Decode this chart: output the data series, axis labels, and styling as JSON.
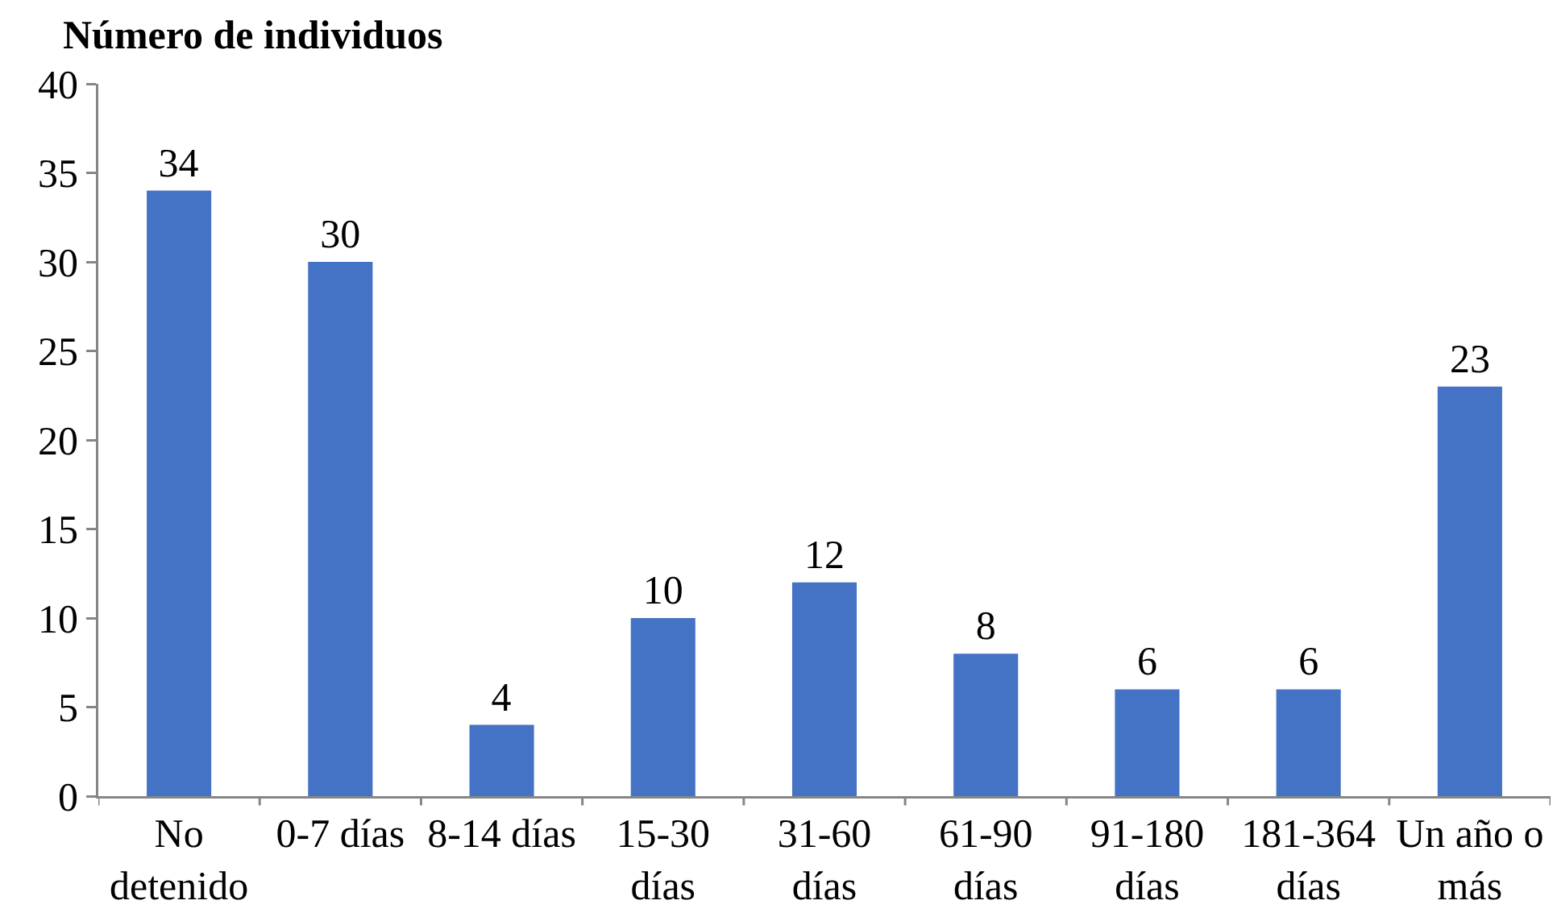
{
  "chart_data": {
    "type": "bar",
    "ylabel": "Número de individuos",
    "categories": [
      "No detenido",
      "0-7 días",
      "8-14 días",
      "15-30 días",
      "31-60 días",
      "61-90 días",
      "91-180 días",
      "181-364 días",
      "Un año o más"
    ],
    "values": [
      34,
      30,
      4,
      10,
      12,
      8,
      6,
      6,
      23
    ],
    "color": "#4472c4",
    "ylim": [
      0,
      40
    ],
    "yticks": [
      0,
      5,
      10,
      15,
      20,
      25,
      30,
      35,
      40
    ],
    "grid": false,
    "data_labels": true
  }
}
